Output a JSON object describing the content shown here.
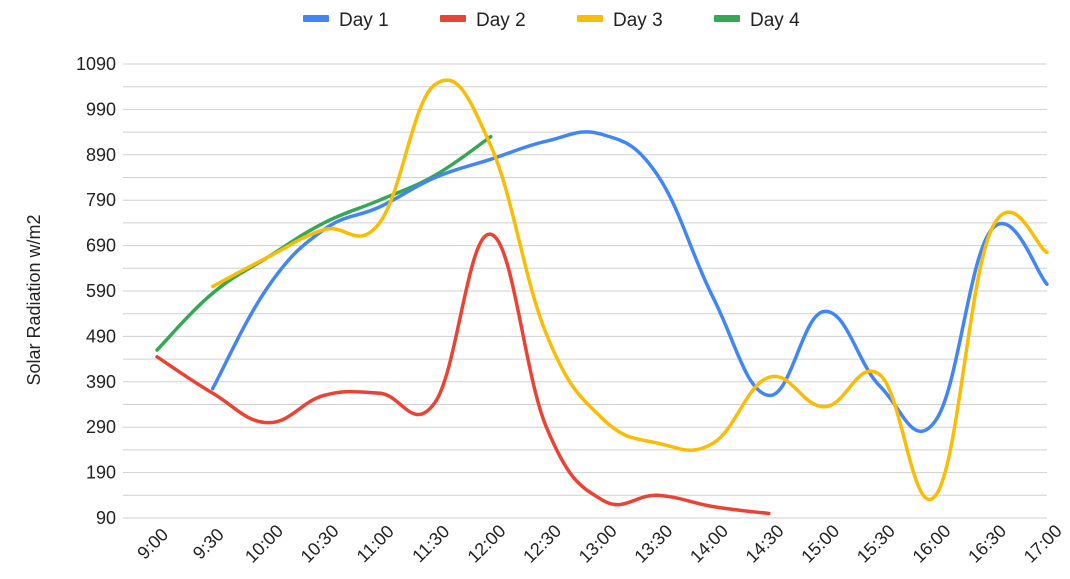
{
  "chart_data": {
    "type": "line",
    "title": "",
    "xlabel": "",
    "ylabel": "Solar Radiation w/m2",
    "categories": [
      "9:00",
      "9:30",
      "10:00",
      "10:30",
      "11:00",
      "11:30",
      "12:00",
      "12:30",
      "13:00",
      "13:30",
      "14:00",
      "14:30",
      "15:00",
      "15:30",
      "16:00",
      "16:30",
      "17:00"
    ],
    "y_ticks": [
      90,
      190,
      290,
      390,
      490,
      590,
      690,
      790,
      890,
      990,
      1090
    ],
    "ylim": [
      90,
      1090
    ],
    "grid": true,
    "legend_position": "top",
    "series": [
      {
        "name": "Day 1",
        "color": "#4285f4",
        "values": [
          null,
          375,
          600,
          725,
          775,
          840,
          880,
          920,
          935,
          845,
          575,
          360,
          545,
          380,
          305,
          725,
          605
        ]
      },
      {
        "name": "Day 2",
        "color": "#ea4335",
        "values": [
          445,
          365,
          300,
          360,
          365,
          345,
          715,
          290,
          130,
          140,
          115,
          100,
          null,
          null,
          null,
          null,
          null
        ]
      },
      {
        "name": "Day 3",
        "color": "#fbbc04",
        "values": [
          null,
          600,
          665,
          725,
          740,
          1045,
          910,
          495,
          310,
          255,
          255,
          400,
          335,
          405,
          140,
          725,
          675
        ]
      },
      {
        "name": "Day 4",
        "color": "#34a853",
        "values": [
          460,
          585,
          665,
          740,
          790,
          845,
          930,
          null,
          null,
          null,
          null,
          null,
          null,
          null,
          null,
          null,
          null
        ]
      }
    ]
  }
}
